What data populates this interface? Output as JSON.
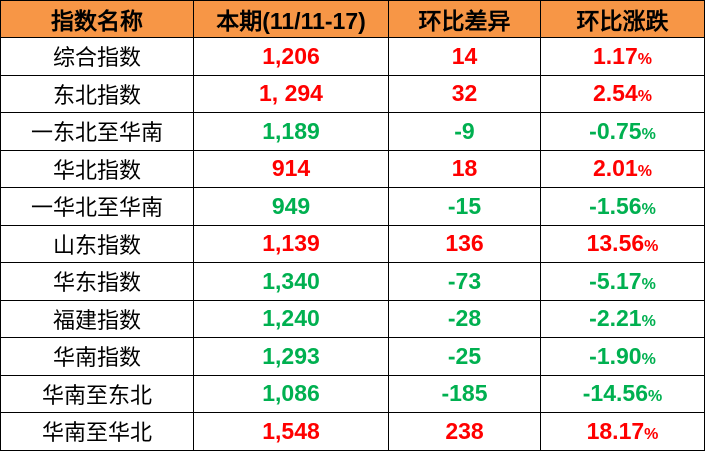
{
  "headers": [
    "指数名称",
    "本期(11/11-17)",
    "环比差异",
    "环比涨跌"
  ],
  "colors": {
    "header_bg": "#F79646",
    "up": "#FF0000",
    "down": "#00B050"
  },
  "rows": [
    {
      "name": "综合指数",
      "current": "1,206",
      "diff": "14",
      "change": "1.17",
      "trend": "up"
    },
    {
      "name": "东北指数",
      "current": "1, 294",
      "diff": "32",
      "change": "2.54",
      "trend": "up"
    },
    {
      "name": "一东北至华南",
      "current": "1,189",
      "diff": "-9",
      "change": "-0.75",
      "trend": "down"
    },
    {
      "name": "华北指数",
      "current": "914",
      "diff": "18",
      "change": "2.01",
      "trend": "up"
    },
    {
      "name": "一华北至华南",
      "current": "949",
      "diff": "-15",
      "change": "-1.56",
      "trend": "down"
    },
    {
      "name": "山东指数",
      "current": "1,139",
      "diff": "136",
      "change": "13.56",
      "trend": "up"
    },
    {
      "name": "华东指数",
      "current": "1,340",
      "diff": "-73",
      "change": "-5.17",
      "trend": "down"
    },
    {
      "name": "福建指数",
      "current": "1,240",
      "diff": "-28",
      "change": "-2.21",
      "trend": "down"
    },
    {
      "name": "华南指数",
      "current": "1,293",
      "diff": "-25",
      "change": "-1.90",
      "trend": "down"
    },
    {
      "name": "华南至东北",
      "current": "1,086",
      "diff": "-185",
      "change": "-14.56",
      "trend": "down"
    },
    {
      "name": "华南至华北",
      "current": "1,548",
      "diff": "238",
      "change": "18.17",
      "trend": "up"
    }
  ],
  "percent_sign": "%"
}
